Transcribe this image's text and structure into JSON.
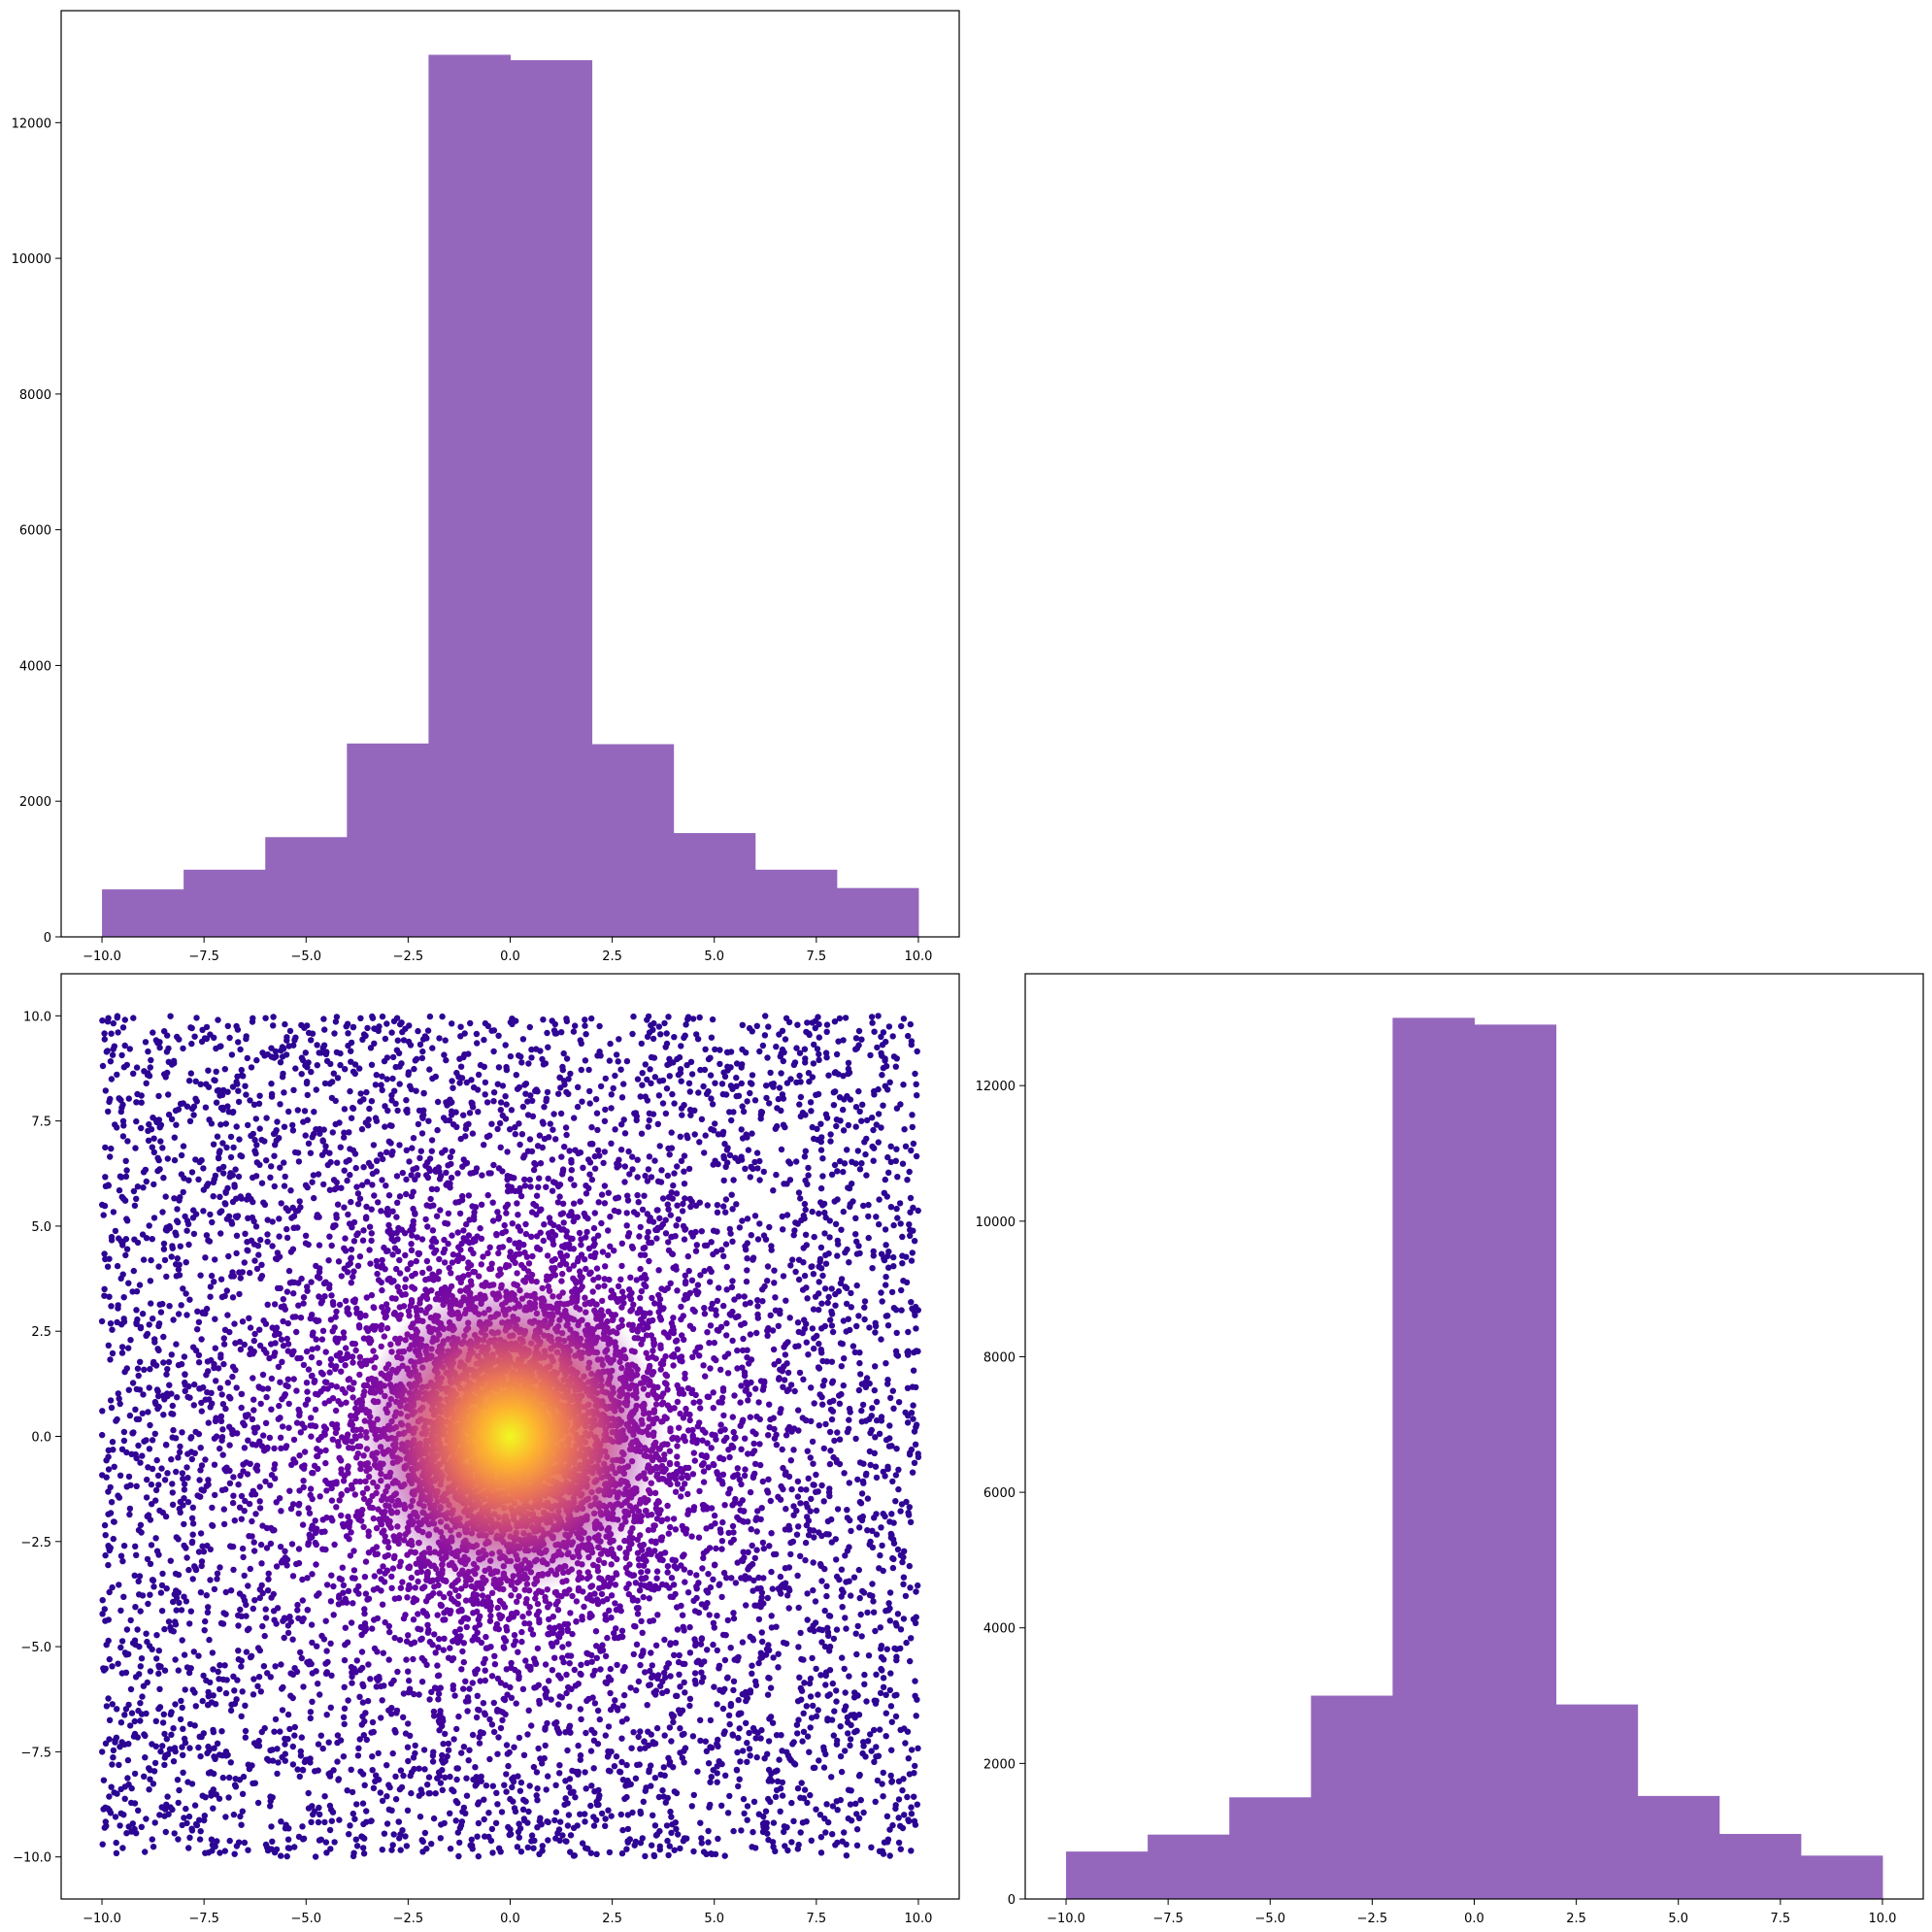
{
  "chart_data": [
    {
      "id": "hist-x",
      "type": "bar",
      "kind": "histogram",
      "bar_color": "#9467bd",
      "bin_edges": [
        -10,
        -8,
        -6,
        -4,
        -2,
        0,
        2,
        4,
        6,
        8,
        10
      ],
      "values": [
        700,
        990,
        1470,
        2850,
        13000,
        12920,
        2840,
        1530,
        990,
        720
      ],
      "xlim": [
        -11,
        11
      ],
      "ylim": [
        0,
        13650
      ],
      "x_ticks": [
        -10,
        -7.5,
        -5,
        -2.5,
        0,
        2.5,
        5,
        7.5,
        10
      ],
      "x_tick_labels": [
        "−10.0",
        "−7.5",
        "−5.0",
        "−2.5",
        "0.0",
        "2.5",
        "5.0",
        "7.5",
        "10.0"
      ],
      "y_ticks": [
        0,
        2000,
        4000,
        6000,
        8000,
        10000,
        12000
      ],
      "y_tick_labels": [
        "0",
        "2000",
        "4000",
        "6000",
        "8000",
        "10000",
        "12000"
      ],
      "grid": false
    },
    {
      "id": "scatter-xy",
      "type": "scatter",
      "colormap": "plasma",
      "color_by": "density",
      "x_range": [
        -10,
        10
      ],
      "y_range": [
        -10,
        10
      ],
      "point_color_low": "#2a0593",
      "point_color_high": "#f0f921",
      "xlim": [
        -11,
        11
      ],
      "ylim": [
        -11,
        11
      ],
      "x_ticks": [
        -10,
        -7.5,
        -5,
        -2.5,
        0,
        2.5,
        5,
        7.5,
        10
      ],
      "x_tick_labels": [
        "−10.0",
        "−7.5",
        "−5.0",
        "−2.5",
        "0.0",
        "2.5",
        "5.0",
        "7.5",
        "10.0"
      ],
      "y_ticks": [
        10,
        7.5,
        5,
        2.5,
        0,
        -2.5,
        -5,
        -7.5,
        -10
      ],
      "y_tick_labels": [
        "10.0",
        "7.5",
        "5.0",
        "2.5",
        "0.0",
        "−2.5",
        "−5.0",
        "−7.5",
        "−10.0"
      ],
      "grid": false
    },
    {
      "id": "hist-y",
      "type": "bar",
      "kind": "histogram",
      "bar_color": "#9467bd",
      "bin_edges": [
        -10,
        -8,
        -6,
        -4,
        -2,
        0,
        2,
        4,
        6,
        8,
        10
      ],
      "values": [
        700,
        950,
        1500,
        3000,
        13000,
        12900,
        2870,
        1520,
        960,
        640
      ],
      "xlim": [
        -11,
        11
      ],
      "ylim": [
        0,
        13650
      ],
      "x_ticks": [
        -10,
        -7.5,
        -5,
        -2.5,
        0,
        2.5,
        5,
        7.5,
        10
      ],
      "x_tick_labels": [
        "−10.0",
        "−7.5",
        "−5.0",
        "−2.5",
        "0.0",
        "2.5",
        "5.0",
        "7.5",
        "10.0"
      ],
      "y_ticks": [
        0,
        2000,
        4000,
        6000,
        8000,
        10000,
        12000
      ],
      "y_tick_labels": [
        "0",
        "2000",
        "4000",
        "6000",
        "8000",
        "10000",
        "12000"
      ],
      "grid": false
    }
  ]
}
